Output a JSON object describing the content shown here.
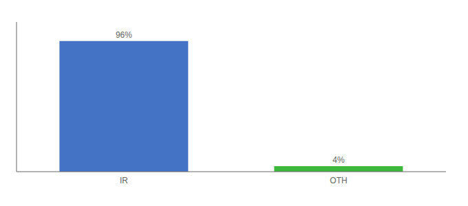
{
  "chart_data": {
    "type": "bar",
    "categories": [
      "IR",
      "OTH"
    ],
    "values": [
      96,
      4
    ],
    "value_labels": [
      "96%",
      "4%"
    ],
    "colors": [
      "#4472C4",
      "#3CB93C"
    ],
    "ylim": [
      0,
      110
    ],
    "data_labels": true,
    "tick_labels": "x",
    "grid": false
  }
}
